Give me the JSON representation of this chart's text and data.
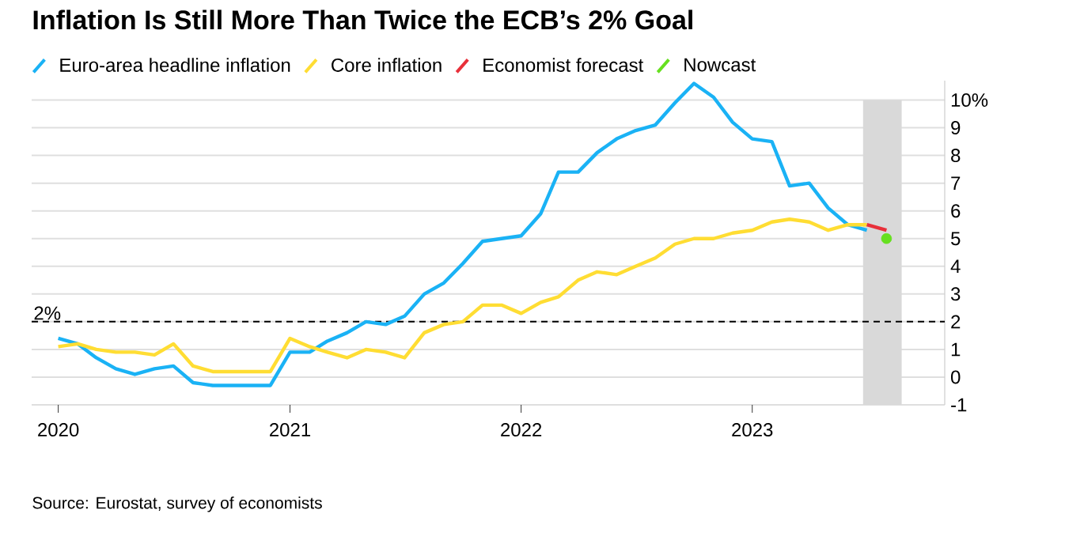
{
  "chart_data": {
    "type": "line",
    "title": "Inflation Is Still More Than Twice the ECB’s 2% Goal",
    "annotations": [
      "Source: Eurostat, survey of economists"
    ],
    "series": [
      {
        "name": "Euro-area headline inflation",
        "color": "#1ab2f5",
        "x": [
          "2020-01",
          "2020-02",
          "2020-03",
          "2020-04",
          "2020-05",
          "2020-06",
          "2020-07",
          "2020-08",
          "2020-09",
          "2020-10",
          "2020-11",
          "2020-12",
          "2021-01",
          "2021-02",
          "2021-03",
          "2021-04",
          "2021-05",
          "2021-06",
          "2021-07",
          "2021-08",
          "2021-09",
          "2021-10",
          "2021-11",
          "2021-12",
          "2022-01",
          "2022-02",
          "2022-03",
          "2022-04",
          "2022-05",
          "2022-06",
          "2022-07",
          "2022-08",
          "2022-09",
          "2022-10",
          "2022-11",
          "2022-12",
          "2023-01",
          "2023-02",
          "2023-03",
          "2023-04",
          "2023-05",
          "2023-06",
          "2023-07"
        ],
        "values": [
          1.4,
          1.2,
          0.7,
          0.3,
          0.1,
          0.3,
          0.4,
          -0.2,
          -0.3,
          -0.3,
          -0.3,
          -0.3,
          0.9,
          0.9,
          1.3,
          1.6,
          2.0,
          1.9,
          2.2,
          3.0,
          3.4,
          4.1,
          4.9,
          5.0,
          5.1,
          5.9,
          7.4,
          7.4,
          8.1,
          8.6,
          8.9,
          9.1,
          9.9,
          10.6,
          10.1,
          9.2,
          8.6,
          8.5,
          6.9,
          7.0,
          6.1,
          5.5,
          5.3
        ]
      },
      {
        "name": "Core inflation",
        "color": "#ffdd33",
        "x": [
          "2020-01",
          "2020-02",
          "2020-03",
          "2020-04",
          "2020-05",
          "2020-06",
          "2020-07",
          "2020-08",
          "2020-09",
          "2020-10",
          "2020-11",
          "2020-12",
          "2021-01",
          "2021-02",
          "2021-03",
          "2021-04",
          "2021-05",
          "2021-06",
          "2021-07",
          "2021-08",
          "2021-09",
          "2021-10",
          "2021-11",
          "2021-12",
          "2022-01",
          "2022-02",
          "2022-03",
          "2022-04",
          "2022-05",
          "2022-06",
          "2022-07",
          "2022-08",
          "2022-09",
          "2022-10",
          "2022-11",
          "2022-12",
          "2023-01",
          "2023-02",
          "2023-03",
          "2023-04",
          "2023-05",
          "2023-06",
          "2023-07"
        ],
        "values": [
          1.1,
          1.2,
          1.0,
          0.9,
          0.9,
          0.8,
          1.2,
          0.4,
          0.2,
          0.2,
          0.2,
          0.2,
          1.4,
          1.1,
          0.9,
          0.7,
          1.0,
          0.9,
          0.7,
          1.6,
          1.9,
          2.0,
          2.6,
          2.6,
          2.3,
          2.7,
          2.9,
          3.5,
          3.8,
          3.7,
          4.0,
          4.3,
          4.8,
          5.0,
          5.0,
          5.2,
          5.3,
          5.6,
          5.7,
          5.6,
          5.3,
          5.5,
          5.5
        ]
      },
      {
        "name": "Economist forecast",
        "color": "#e8303a",
        "x": [
          "2023-07",
          "2023-08"
        ],
        "values": [
          5.5,
          5.3
        ]
      },
      {
        "name": "Nowcast",
        "type": "scatter",
        "color": "#66e01f",
        "x": [
          "2023-08"
        ],
        "values": [
          5.0
        ]
      }
    ],
    "xlim": [
      "2019-11-20",
      "2023-11-01"
    ],
    "xticks": [
      {
        "value": "2020-01",
        "label": "2020"
      },
      {
        "value": "2021-01",
        "label": "2021"
      },
      {
        "value": "2022-01",
        "label": "2022"
      },
      {
        "value": "2023-01",
        "label": "2023"
      }
    ],
    "ylim": [
      -1,
      10.7
    ],
    "yticks": [
      -1,
      0,
      1,
      2,
      3,
      4,
      5,
      6,
      7,
      8,
      9,
      {
        "value": 10,
        "label": "10%"
      }
    ],
    "grid": "y",
    "legend": "top",
    "ref_lines": [
      {
        "axis": "y",
        "value": 2,
        "label": "2%",
        "line_style": "dashed",
        "color": "#000000"
      }
    ],
    "bands": [
      {
        "axis": "x",
        "from": "2023-06-25",
        "to": "2023-08-25",
        "color": "#d9d9d9"
      }
    ]
  }
}
